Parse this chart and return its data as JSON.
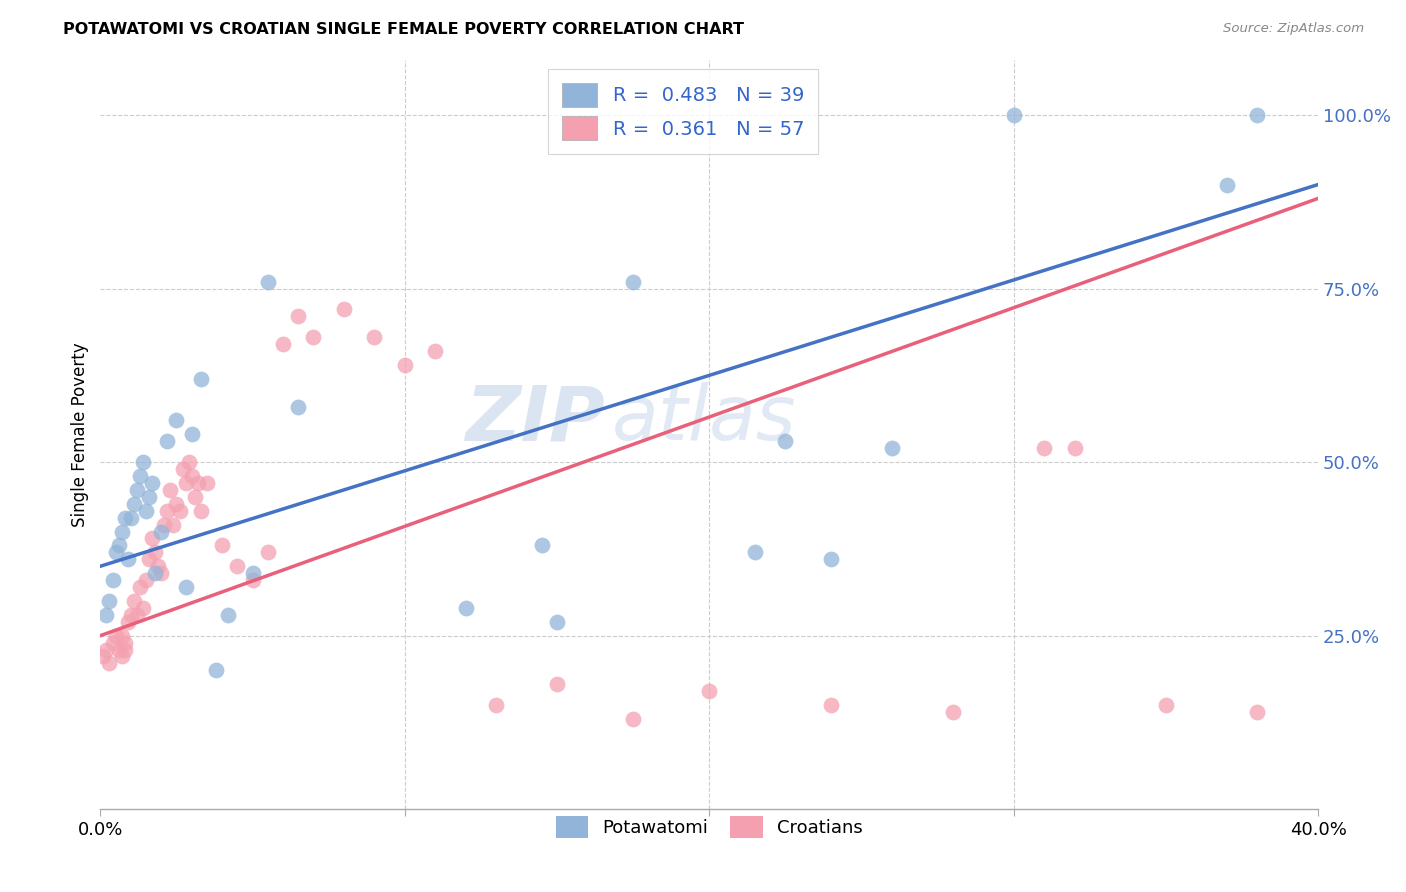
{
  "title": "POTAWATOMI VS CROATIAN SINGLE FEMALE POVERTY CORRELATION CHART",
  "source": "Source: ZipAtlas.com",
  "ylabel": "Single Female Poverty",
  "y_ticks": [
    0.0,
    0.25,
    0.5,
    0.75,
    1.0
  ],
  "y_tick_labels": [
    "",
    "25.0%",
    "50.0%",
    "75.0%",
    "100.0%"
  ],
  "xlim": [
    0.0,
    0.4
  ],
  "ylim": [
    0.0,
    1.08
  ],
  "legend_r_blue": "0.483",
  "legend_n_blue": "39",
  "legend_r_pink": "0.361",
  "legend_n_pink": "57",
  "legend_label_blue": "Potawatomi",
  "legend_label_pink": "Croatians",
  "blue_color": "#92B4D8",
  "pink_color": "#F4A0B0",
  "blue_line_color": "#4472C4",
  "pink_line_color": "#E8607A",
  "watermark_zip": "ZIP",
  "watermark_atlas": "atlas",
  "potawatomi_x": [
    0.002,
    0.003,
    0.004,
    0.005,
    0.006,
    0.007,
    0.008,
    0.009,
    0.01,
    0.011,
    0.012,
    0.013,
    0.014,
    0.015,
    0.016,
    0.017,
    0.018,
    0.02,
    0.022,
    0.025,
    0.028,
    0.03,
    0.033,
    0.038,
    0.042,
    0.05,
    0.055,
    0.065,
    0.12,
    0.145,
    0.175,
    0.215,
    0.225,
    0.3,
    0.37,
    0.38,
    0.15,
    0.24,
    0.26
  ],
  "potawatomi_y": [
    0.28,
    0.3,
    0.33,
    0.37,
    0.38,
    0.4,
    0.42,
    0.36,
    0.42,
    0.44,
    0.46,
    0.48,
    0.5,
    0.43,
    0.45,
    0.47,
    0.34,
    0.4,
    0.53,
    0.56,
    0.32,
    0.54,
    0.62,
    0.2,
    0.28,
    0.34,
    0.76,
    0.58,
    0.29,
    0.38,
    0.76,
    0.37,
    0.53,
    1.0,
    0.9,
    1.0,
    0.27,
    0.36,
    0.52
  ],
  "croatian_x": [
    0.001,
    0.002,
    0.003,
    0.004,
    0.005,
    0.006,
    0.007,
    0.007,
    0.008,
    0.008,
    0.009,
    0.01,
    0.011,
    0.012,
    0.013,
    0.014,
    0.015,
    0.016,
    0.017,
    0.018,
    0.019,
    0.02,
    0.021,
    0.022,
    0.023,
    0.024,
    0.025,
    0.026,
    0.027,
    0.028,
    0.029,
    0.03,
    0.031,
    0.032,
    0.033,
    0.035,
    0.04,
    0.045,
    0.05,
    0.055,
    0.06,
    0.065,
    0.07,
    0.08,
    0.09,
    0.1,
    0.11,
    0.13,
    0.15,
    0.175,
    0.2,
    0.24,
    0.28,
    0.31,
    0.35,
    0.38,
    0.32
  ],
  "croatian_y": [
    0.22,
    0.23,
    0.21,
    0.24,
    0.25,
    0.23,
    0.22,
    0.25,
    0.23,
    0.24,
    0.27,
    0.28,
    0.3,
    0.28,
    0.32,
    0.29,
    0.33,
    0.36,
    0.39,
    0.37,
    0.35,
    0.34,
    0.41,
    0.43,
    0.46,
    0.41,
    0.44,
    0.43,
    0.49,
    0.47,
    0.5,
    0.48,
    0.45,
    0.47,
    0.43,
    0.47,
    0.38,
    0.35,
    0.33,
    0.37,
    0.67,
    0.71,
    0.68,
    0.72,
    0.68,
    0.64,
    0.66,
    0.15,
    0.18,
    0.13,
    0.17,
    0.15,
    0.14,
    0.52,
    0.15,
    0.14,
    0.52
  ],
  "blue_line_x0": 0.0,
  "blue_line_y0": 0.35,
  "blue_line_x1": 0.4,
  "blue_line_y1": 0.9,
  "pink_line_x0": 0.0,
  "pink_line_y0": 0.25,
  "pink_line_x1": 0.4,
  "pink_line_y1": 0.88
}
